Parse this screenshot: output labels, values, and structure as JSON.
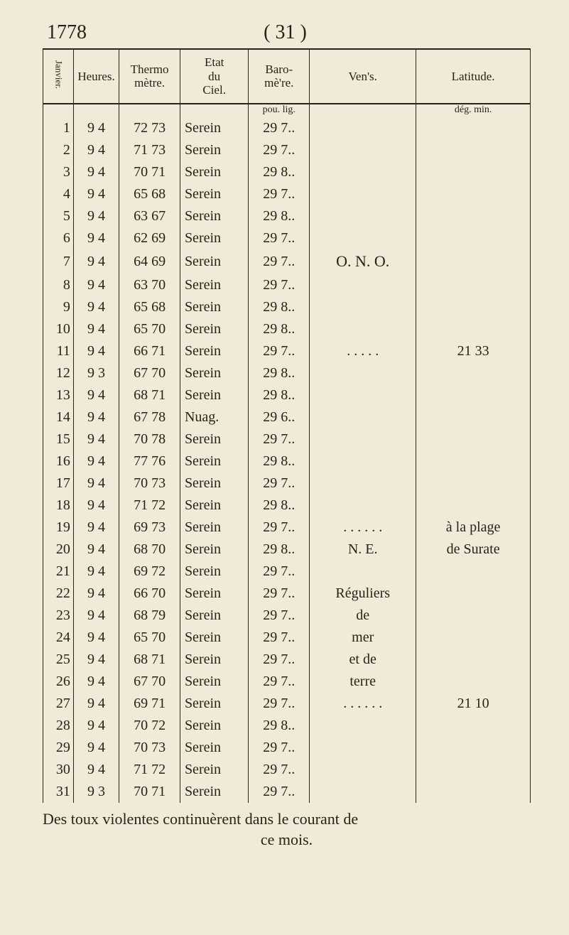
{
  "header": {
    "year": "1778",
    "page_ref": "( 31 )"
  },
  "side_label": "Janvier.",
  "columns": {
    "idx": "",
    "heures": "Heures.",
    "thermo": "Thermo\nmètre.",
    "ciel": "Etat\ndu\nCiel.",
    "baro": "Baro-\nmè're.",
    "vents": "Ven's.",
    "latitude": "Latitude."
  },
  "units": {
    "baro": "pou. lig.",
    "latitude": "dég. min."
  },
  "vents_center": "O. N. O.",
  "lat_11": "21  33",
  "vents_block": {
    "line19": ". . . . . .",
    "line20": "N. E.",
    "line22": "Réguliers",
    "line23": "de",
    "line24": "mer",
    "line25": "et de",
    "line26": "terre",
    "line27": ". . . . . ."
  },
  "lat_block": {
    "line19": "à la plage",
    "line20": "de Surate",
    "line27": "21  10"
  },
  "rows": [
    {
      "i": "1",
      "h": "9  4",
      "t": "72  73",
      "c": "Serein",
      "b": "29  7.."
    },
    {
      "i": "2",
      "h": "9  4",
      "t": "71  73",
      "c": "Serein",
      "b": "29  7.."
    },
    {
      "i": "3",
      "h": "9  4",
      "t": "70  71",
      "c": "Serein",
      "b": "29  8.."
    },
    {
      "i": "4",
      "h": "9  4",
      "t": "65  68",
      "c": "Serein",
      "b": "29  7.."
    },
    {
      "i": "5",
      "h": "9  4",
      "t": "63  67",
      "c": "Serein",
      "b": "29  8.."
    },
    {
      "i": "6",
      "h": "9  4",
      "t": "62  69",
      "c": "Serein",
      "b": "29  7.."
    },
    {
      "i": "7",
      "h": "9  4",
      "t": "64  69",
      "c": "Serein",
      "b": "29  7.."
    },
    {
      "i": "8",
      "h": "9  4",
      "t": "63  70",
      "c": "Serein",
      "b": "29  7.."
    },
    {
      "i": "9",
      "h": "9  4",
      "t": "65  68",
      "c": "Serein",
      "b": "29  8.."
    },
    {
      "i": "10",
      "h": "9  4",
      "t": "65  70",
      "c": "Serein",
      "b": "29  8.."
    },
    {
      "i": "11",
      "h": "9  4",
      "t": "66  71",
      "c": "Serein",
      "b": "29  7.."
    },
    {
      "i": "12",
      "h": "9  3",
      "t": "67  70",
      "c": "Serein",
      "b": "29  8.."
    },
    {
      "i": "13",
      "h": "9  4",
      "t": "68  71",
      "c": "Serein",
      "b": "29  8.."
    },
    {
      "i": "14",
      "h": "9  4",
      "t": "67  78",
      "c": "Nuag.",
      "b": "29  6.."
    },
    {
      "i": "15",
      "h": "9  4",
      "t": "70  78",
      "c": "Serein",
      "b": "29  7.."
    },
    {
      "i": "16",
      "h": "9  4",
      "t": "77  76",
      "c": "Serein",
      "b": "29  8.."
    },
    {
      "i": "17",
      "h": "9  4",
      "t": "70  73",
      "c": "Serein",
      "b": "29  7.."
    },
    {
      "i": "18",
      "h": "9  4",
      "t": "71  72",
      "c": "Serein",
      "b": "29  8.."
    },
    {
      "i": "19",
      "h": "9  4",
      "t": "69  73",
      "c": "Serein",
      "b": "29  7.."
    },
    {
      "i": "20",
      "h": "9  4",
      "t": "68  70",
      "c": "Serein",
      "b": "29  8.."
    },
    {
      "i": "21",
      "h": "9  4",
      "t": "69  72",
      "c": "Serein",
      "b": "29  7.."
    },
    {
      "i": "22",
      "h": "9  4",
      "t": "66  70",
      "c": "Serein",
      "b": "29  7.."
    },
    {
      "i": "23",
      "h": "9  4",
      "t": "68  79",
      "c": "Serein",
      "b": "29  7.."
    },
    {
      "i": "24",
      "h": "9  4",
      "t": "65  70",
      "c": "Serein",
      "b": "29  7.."
    },
    {
      "i": "25",
      "h": "9  4",
      "t": "68  71",
      "c": "Serein",
      "b": "29  7.."
    },
    {
      "i": "26",
      "h": "9  4",
      "t": "67  70",
      "c": "Serein",
      "b": "29  7.."
    },
    {
      "i": "27",
      "h": "9  4",
      "t": "69  71",
      "c": "Serein",
      "b": "29  7.."
    },
    {
      "i": "28",
      "h": "9  4",
      "t": "70  72",
      "c": "Serein",
      "b": "29  8.."
    },
    {
      "i": "29",
      "h": "9  4",
      "t": "70  73",
      "c": "Serein",
      "b": "29  7.."
    },
    {
      "i": "30",
      "h": "9  4",
      "t": "71  72",
      "c": "Serein",
      "b": "29  7.."
    },
    {
      "i": "31",
      "h": "9  3",
      "t": "70  71",
      "c": "Serein",
      "b": "29  7.."
    }
  ],
  "footer": {
    "line1": "Des toux violentes continuèrent dans le courant de",
    "line2": "ce mois."
  }
}
